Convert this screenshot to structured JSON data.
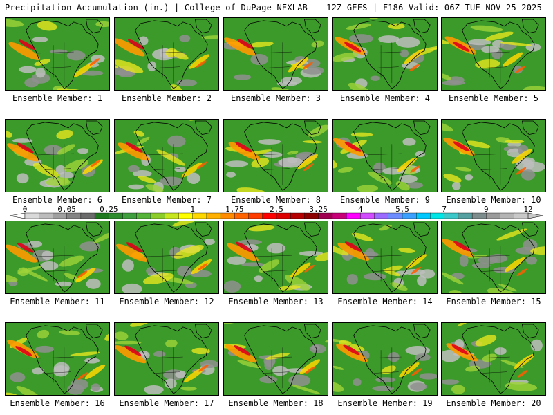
{
  "header": {
    "left": "Precipitation Accumulation (in.) | College of DuPage NEXLAB",
    "right": "12Z GEFS | F186 Valid: 06Z TUE NOV 25 2025"
  },
  "panels": [
    {
      "label": "Ensemble Member: 1"
    },
    {
      "label": "Ensemble Member: 2"
    },
    {
      "label": "Ensemble Member: 3"
    },
    {
      "label": "Ensemble Member: 4"
    },
    {
      "label": "Ensemble Member: 5"
    },
    {
      "label": "Ensemble Member: 6"
    },
    {
      "label": "Ensemble Member: 7"
    },
    {
      "label": "Ensemble Member: 8"
    },
    {
      "label": "Ensemble Member: 9"
    },
    {
      "label": "Ensemble Member: 10"
    },
    {
      "label": "Ensemble Member: 11"
    },
    {
      "label": "Ensemble Member: 12"
    },
    {
      "label": "Ensemble Member: 13"
    },
    {
      "label": "Ensemble Member: 14"
    },
    {
      "label": "Ensemble Member: 15"
    },
    {
      "label": "Ensemble Member: 16"
    },
    {
      "label": "Ensemble Member: 17"
    },
    {
      "label": "Ensemble Member: 18"
    },
    {
      "label": "Ensemble Member: 19"
    },
    {
      "label": "Ensemble Member: 20"
    }
  ],
  "legend": {
    "ticks": [
      "0",
      "0.05",
      "0.25",
      "1",
      "1.75",
      "2.5",
      "3.25",
      "4",
      "5.5",
      "7",
      "9",
      "12"
    ],
    "colors": [
      "#d9d9d9",
      "#bcbcbc",
      "#a0a0a0",
      "#848484",
      "#6b6b6b",
      "#1f7a1f",
      "#2e8b2e",
      "#3f9f3f",
      "#55b33a",
      "#8ccd2a",
      "#c8e61e",
      "#ffff00",
      "#ffd700",
      "#ffb000",
      "#ff8c00",
      "#ff6400",
      "#ff3c00",
      "#ff0000",
      "#dc0000",
      "#b40000",
      "#8c0000",
      "#a00050",
      "#c80078",
      "#ff00ff",
      "#d24bff",
      "#9b6bff",
      "#6c8cff",
      "#3ca0ff",
      "#00c8ff",
      "#00e6e6",
      "#3cc8c8",
      "#55a0a0",
      "#7d8c8c",
      "#9b9b9b",
      "#b4b4b4",
      "#c8c8c8"
    ]
  }
}
